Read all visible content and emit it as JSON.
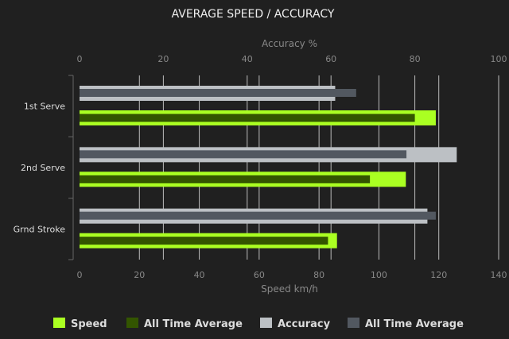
{
  "chart_data": {
    "type": "bar",
    "orientation": "horizontal",
    "title": "AVERAGE SPEED / ACCURACY",
    "categories": [
      "1st Serve",
      "2nd Serve",
      "Grnd Stroke"
    ],
    "top_axis": {
      "label": "Accuracy %",
      "range": [
        0,
        100
      ],
      "ticks": [
        0,
        20,
        40,
        60,
        80,
        100
      ]
    },
    "bottom_axis": {
      "label": "Speed km/h",
      "range": [
        0,
        140
      ],
      "ticks": [
        0,
        20,
        40,
        60,
        80,
        100,
        120,
        140
      ]
    },
    "grid": true,
    "legend_position": "bottom",
    "series": [
      {
        "name": "Speed",
        "axis": "bottom",
        "color": "#aaff22",
        "values": [
          119,
          109,
          86
        ]
      },
      {
        "name": "All Time Average",
        "axis": "bottom",
        "color": "#335500",
        "values": [
          112,
          97,
          83
        ]
      },
      {
        "name": "Accuracy",
        "axis": "top",
        "color": "#bcc0c4",
        "values": [
          61,
          90,
          83
        ]
      },
      {
        "name": "All Time Average",
        "axis": "top",
        "color": "#525860",
        "values": [
          66,
          78,
          85
        ]
      }
    ]
  }
}
